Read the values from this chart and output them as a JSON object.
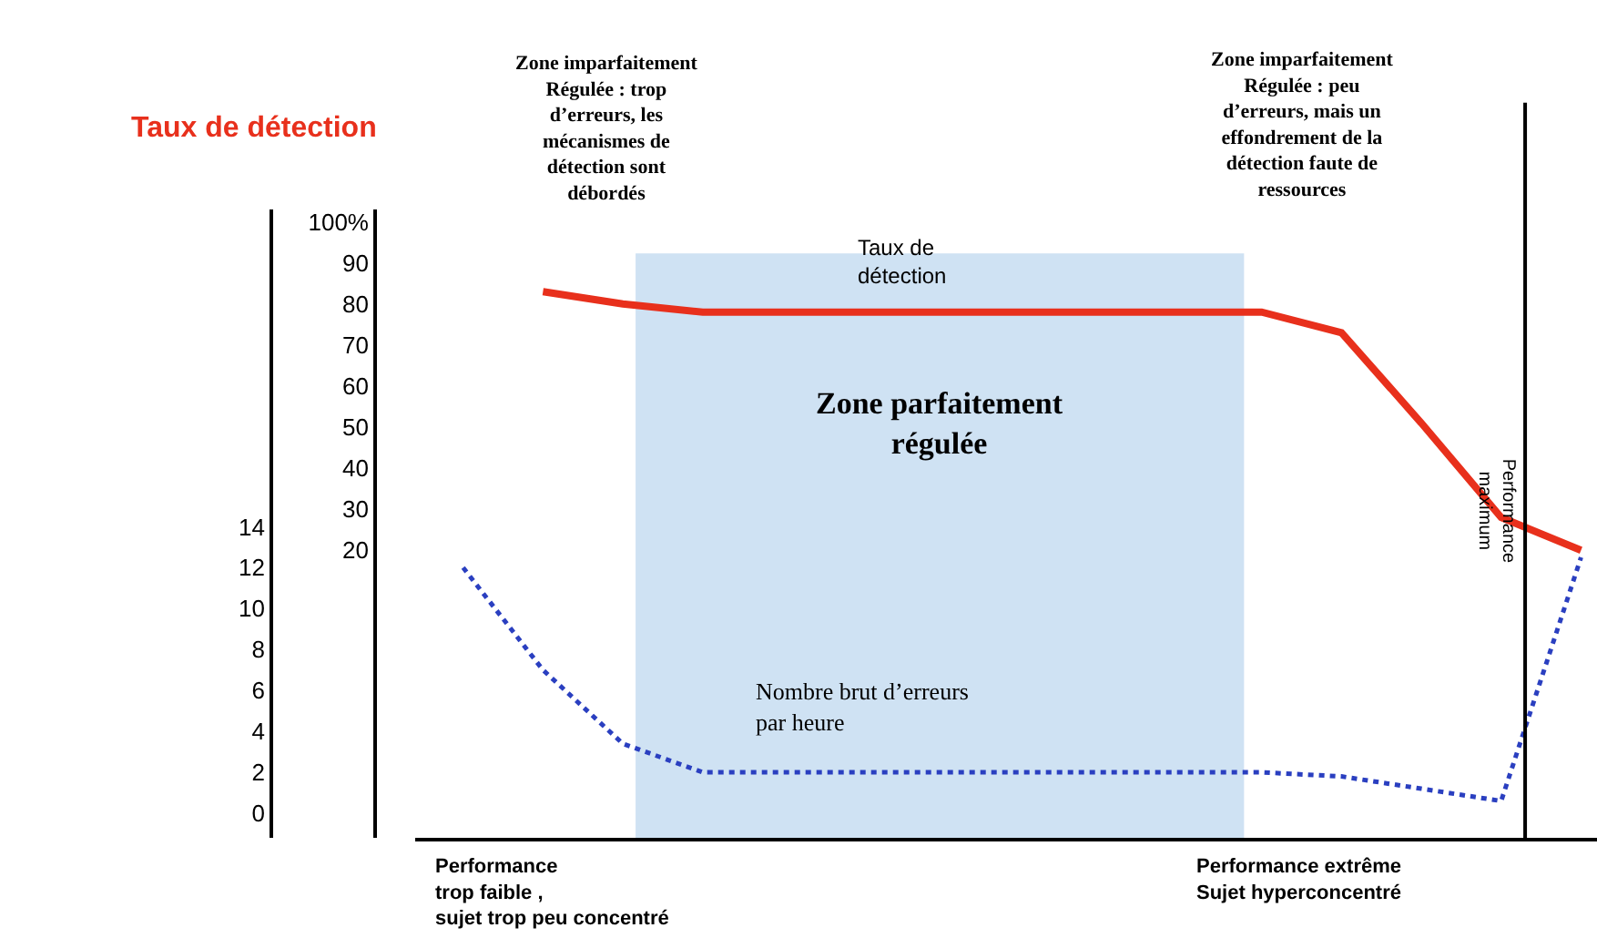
{
  "chart_data": {
    "type": "line",
    "categories": [
      null,
      null,
      null,
      null,
      null,
      null,
      null,
      null,
      null,
      null,
      null,
      null,
      null,
      null,
      null
    ],
    "series": [
      {
        "name": "Taux de\ndétection",
        "color": "#e8301c",
        "line_style": "solid",
        "values": [
          null,
          83,
          80,
          78,
          78,
          78,
          78,
          78,
          78,
          78,
          78,
          73,
          51,
          28,
          20
        ]
      },
      {
        "name": "Nombre brut d’erreurs\npar heure",
        "color": "#2a3fc0",
        "line_style": "dotted",
        "axis": "y2",
        "values": [
          12,
          7,
          3.4,
          2,
          2,
          2,
          2,
          2,
          2,
          2,
          2,
          1.8,
          1.2,
          0.6,
          12.5
        ]
      }
    ],
    "ylim": [
      -50,
      103
    ],
    "yticks": [
      20,
      30,
      40,
      50,
      60,
      70,
      80,
      90,
      {
        "value": 100,
        "label": "100%"
      }
    ],
    "y2lim": [
      -1.2,
      29.5
    ],
    "y2ticks": [
      0,
      2,
      4,
      6,
      8,
      10,
      12,
      14
    ],
    "annotations": [
      "Taux de détection",
      "Zone parfaitement\nrégulée",
      "Performance\nmaximum",
      "Zone imparfaitement\nRégulée : trop\nd’erreurs, les\nmécanismes de\ndétection sont\ndébordés",
      "Zone imparfaitement\nRégulée : peu\nd’erreurs, mais un\neffondrement de la\ndétection faute de\nressources",
      "Performance\ntrop faible ,\nsujet trop peu concentré",
      "Performance extrême\nSujet hyperconcentré"
    ],
    "grid": false,
    "legend": false,
    "marker": "none"
  }
}
